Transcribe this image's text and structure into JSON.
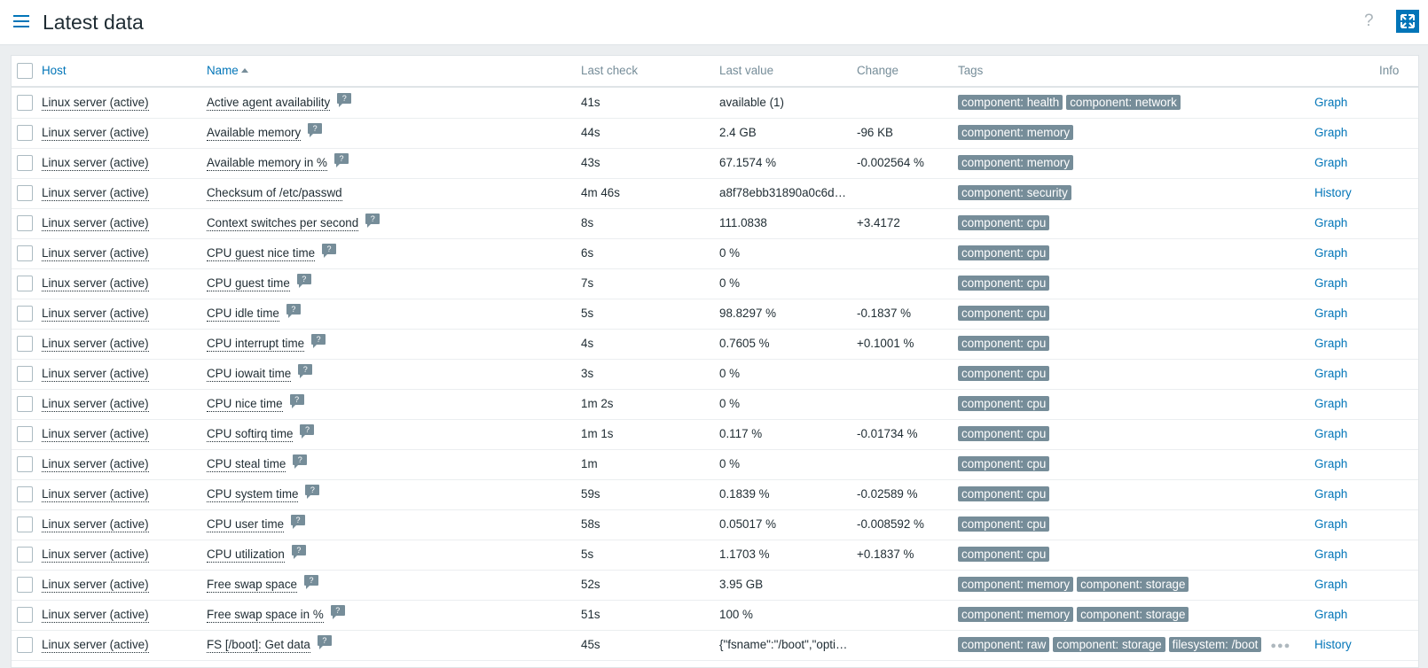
{
  "header": {
    "title": "Latest data",
    "help": "?"
  },
  "table": {
    "columns": {
      "host": "Host",
      "name": "Name",
      "last_check": "Last check",
      "last_value": "Last value",
      "change": "Change",
      "tags": "Tags",
      "info": "Info"
    },
    "help_icon": "?",
    "rows": [
      {
        "host": "Linux server (active)",
        "name": "Active agent availability",
        "help": true,
        "last_check": "41s",
        "last_value": "available (1)",
        "tags": [
          "component: health",
          "component: network"
        ],
        "info": "Graph"
      },
      {
        "host": "Linux server (active)",
        "name": "Available memory",
        "help": true,
        "last_check": "44s",
        "last_value": "2.4 GB",
        "change": "-96 KB",
        "tags": [
          "component: memory"
        ],
        "info": "Graph"
      },
      {
        "host": "Linux server (active)",
        "name": "Available memory in %",
        "help": true,
        "last_check": "43s",
        "last_value": "67.1574 %",
        "change": "-0.002564 %",
        "tags": [
          "component: memory"
        ],
        "info": "Graph"
      },
      {
        "host": "Linux server (active)",
        "name": "Checksum of /etc/passwd",
        "help": false,
        "last_check": "4m 46s",
        "last_value": "a8f78ebb31890a0c6d…",
        "tags": [
          "component: security"
        ],
        "info": "History"
      },
      {
        "host": "Linux server (active)",
        "name": "Context switches per second",
        "help": true,
        "last_check": "8s",
        "last_value": "111.0838",
        "change": "+3.4172",
        "tags": [
          "component: cpu"
        ],
        "info": "Graph"
      },
      {
        "host": "Linux server (active)",
        "name": "CPU guest nice time",
        "help": true,
        "last_check": "6s",
        "last_value": "0 %",
        "tags": [
          "component: cpu"
        ],
        "info": "Graph"
      },
      {
        "host": "Linux server (active)",
        "name": "CPU guest time",
        "help": true,
        "last_check": "7s",
        "last_value": "0 %",
        "tags": [
          "component: cpu"
        ],
        "info": "Graph"
      },
      {
        "host": "Linux server (active)",
        "name": "CPU idle time",
        "help": true,
        "last_check": "5s",
        "last_value": "98.8297 %",
        "change": "-0.1837 %",
        "tags": [
          "component: cpu"
        ],
        "info": "Graph"
      },
      {
        "host": "Linux server (active)",
        "name": "CPU interrupt time",
        "help": true,
        "last_check": "4s",
        "last_value": "0.7605 %",
        "change": "+0.1001 %",
        "tags": [
          "component: cpu"
        ],
        "info": "Graph"
      },
      {
        "host": "Linux server (active)",
        "name": "CPU iowait time",
        "help": true,
        "last_check": "3s",
        "last_value": "0 %",
        "tags": [
          "component: cpu"
        ],
        "info": "Graph"
      },
      {
        "host": "Linux server (active)",
        "name": "CPU nice time",
        "help": true,
        "last_check": "1m 2s",
        "last_value": "0 %",
        "tags": [
          "component: cpu"
        ],
        "info": "Graph"
      },
      {
        "host": "Linux server (active)",
        "name": "CPU softirq time",
        "help": true,
        "last_check": "1m 1s",
        "last_value": "0.117 %",
        "change": "-0.01734 %",
        "tags": [
          "component: cpu"
        ],
        "info": "Graph"
      },
      {
        "host": "Linux server (active)",
        "name": "CPU steal time",
        "help": true,
        "last_check": "1m",
        "last_value": "0 %",
        "tags": [
          "component: cpu"
        ],
        "info": "Graph"
      },
      {
        "host": "Linux server (active)",
        "name": "CPU system time",
        "help": true,
        "last_check": "59s",
        "last_value": "0.1839 %",
        "change": "-0.02589 %",
        "tags": [
          "component: cpu"
        ],
        "info": "Graph"
      },
      {
        "host": "Linux server (active)",
        "name": "CPU user time",
        "help": true,
        "last_check": "58s",
        "last_value": "0.05017 %",
        "change": "-0.008592 %",
        "tags": [
          "component: cpu"
        ],
        "info": "Graph"
      },
      {
        "host": "Linux server (active)",
        "name": "CPU utilization",
        "help": true,
        "last_check": "5s",
        "last_value": "1.1703 %",
        "change": "+0.1837 %",
        "tags": [
          "component: cpu"
        ],
        "info": "Graph"
      },
      {
        "host": "Linux server (active)",
        "name": "Free swap space",
        "help": true,
        "last_check": "52s",
        "last_value": "3.95 GB",
        "tags": [
          "component: memory",
          "component: storage"
        ],
        "info": "Graph"
      },
      {
        "host": "Linux server (active)",
        "name": "Free swap space in %",
        "help": true,
        "last_check": "51s",
        "last_value": "100 %",
        "tags": [
          "component: memory",
          "component: storage"
        ],
        "info": "Graph"
      },
      {
        "host": "Linux server (active)",
        "name": "FS [/boot]: Get data",
        "help": true,
        "last_check": "45s",
        "last_value": "{\"fsname\":\"/boot\",\"opti…",
        "tags": [
          "component: raw",
          "component: storage",
          "filesystem: /boot"
        ],
        "more_tags": true,
        "info": "History"
      }
    ]
  }
}
